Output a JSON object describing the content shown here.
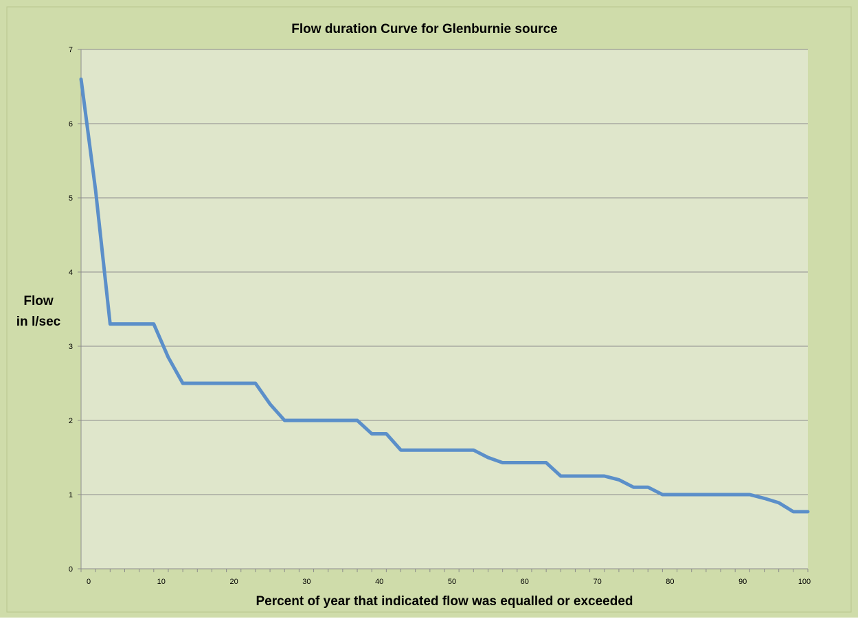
{
  "chart_data": {
    "type": "line",
    "title": "Flow duration Curve for Glenburnie source",
    "xlabel": "Percent of year that indicated flow was equalled or exceeded",
    "ylabel_lines": [
      "Flow",
      "in l/sec"
    ],
    "xlim": [
      0,
      100
    ],
    "ylim": [
      0,
      7
    ],
    "x_ticks": [
      0,
      10,
      20,
      30,
      40,
      50,
      60,
      70,
      80,
      90,
      100
    ],
    "y_ticks": [
      0,
      1,
      2,
      3,
      4,
      5,
      6,
      7
    ],
    "grid": "horizontal",
    "legend": "none",
    "series": [
      {
        "color": "#5b8fc9",
        "x": [
          0,
          2,
          4,
          6,
          8,
          10,
          12,
          14,
          16,
          18,
          20,
          22,
          24,
          26,
          28,
          30,
          32,
          34,
          36,
          38,
          40,
          42,
          44,
          46,
          48,
          50,
          52,
          54,
          56,
          58,
          60,
          62,
          64,
          66,
          68,
          70,
          72,
          74,
          76,
          78,
          80,
          82,
          84,
          86,
          88,
          90,
          92,
          94,
          96,
          98,
          100
        ],
        "y": [
          6.6,
          5.1,
          3.3,
          3.3,
          3.3,
          3.3,
          2.85,
          2.5,
          2.5,
          2.5,
          2.5,
          2.5,
          2.5,
          2.22,
          2.0,
          2.0,
          2.0,
          2.0,
          2.0,
          2.0,
          1.82,
          1.82,
          1.6,
          1.6,
          1.6,
          1.6,
          1.6,
          1.6,
          1.5,
          1.43,
          1.43,
          1.43,
          1.43,
          1.25,
          1.25,
          1.25,
          1.25,
          1.2,
          1.1,
          1.1,
          1.0,
          1.0,
          1.0,
          1.0,
          1.0,
          1.0,
          1.0,
          0.95,
          0.89,
          0.77,
          0.77
        ]
      }
    ]
  },
  "colors": {
    "outer_background": "#cfdcaa",
    "plot_background": "#dfe6cb",
    "gridline": "#8c8c8c",
    "axis": "#8c8c8c",
    "line": "#5b8fc9"
  }
}
